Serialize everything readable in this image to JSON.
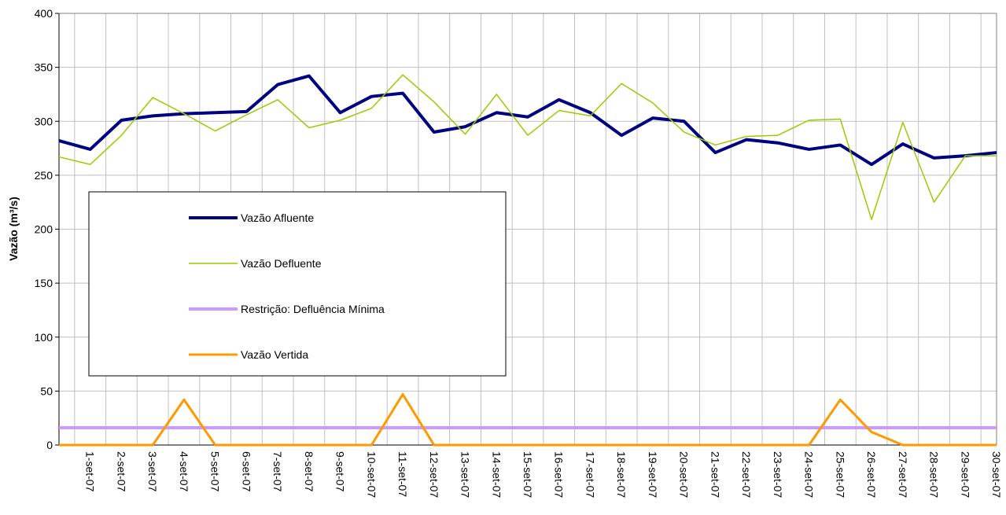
{
  "chart_data": {
    "type": "line",
    "y_label": "Vazão (m³/s)",
    "categories": [
      null,
      "1-set-07",
      "2-set-07",
      "3-set-07",
      "4-set-07",
      "5-set-07",
      "6-set-07",
      "7-set-07",
      "8-set-07",
      "9-set-07",
      "10-set-07",
      "11-set-07",
      "12-set-07",
      "13-set-07",
      "14-set-07",
      "15-set-07",
      "16-set-07",
      "17-set-07",
      "18-set-07",
      "19-set-07",
      "20-set-07",
      "21-set-07",
      "22-set-07",
      "23-set-07",
      "24-set-07",
      "25-set-07",
      "26-set-07",
      "27-set-07",
      "28-set-07",
      "29-set-07",
      "30-set-07"
    ],
    "series": [
      {
        "name": "Vazão Afluente",
        "color": "#000080",
        "width": 4,
        "values": [
          282,
          274,
          301,
          305,
          307,
          308,
          309,
          334,
          342,
          308,
          323,
          326,
          290,
          295,
          308,
          304,
          320,
          308,
          287,
          303,
          300,
          271,
          283,
          280,
          274,
          278,
          260,
          279,
          266,
          268,
          271
        ]
      },
      {
        "name": "Vazão Defluente",
        "color": "#99cc00",
        "width": 1.5,
        "values": [
          267,
          260,
          287,
          322,
          307,
          291,
          306,
          320,
          294,
          301,
          312,
          343,
          318,
          288,
          325,
          287,
          310,
          305,
          335,
          317,
          290,
          278,
          286,
          287,
          301,
          302,
          209,
          299,
          225,
          268,
          268
        ]
      },
      {
        "name": "Restrição: Defluência Mínima",
        "color": "#cc99ff",
        "width": 4,
        "values": [
          16,
          16,
          16,
          16,
          16,
          16,
          16,
          16,
          16,
          16,
          16,
          16,
          16,
          16,
          16,
          16,
          16,
          16,
          16,
          16,
          16,
          16,
          16,
          16,
          16,
          16,
          16,
          16,
          16,
          16,
          16
        ]
      },
      {
        "name": "Vazão Vertida",
        "color": "#ff9900",
        "width": 3,
        "values": [
          0,
          0,
          0,
          0,
          42,
          0,
          0,
          0,
          0,
          0,
          0,
          47,
          0,
          0,
          0,
          0,
          0,
          0,
          0,
          0,
          0,
          0,
          0,
          0,
          0,
          42,
          12,
          0,
          0,
          0,
          0
        ]
      }
    ],
    "ylim": [
      0,
      400
    ],
    "yticks": [
      0,
      50,
      100,
      150,
      200,
      250,
      300,
      350,
      400
    ],
    "grid": true
  }
}
